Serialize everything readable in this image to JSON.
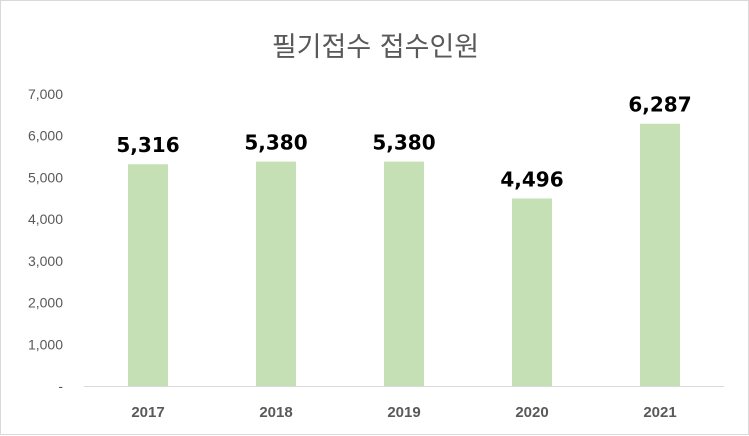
{
  "chart_data": {
    "type": "bar",
    "title": "필기접수 접수인원",
    "categories": [
      "2017",
      "2018",
      "2019",
      "2020",
      "2021"
    ],
    "values": [
      5316,
      5380,
      5380,
      4496,
      6287
    ],
    "data_labels": [
      "5,316",
      "5,380",
      "5,380",
      "4,496",
      "6,287"
    ],
    "ylim": [
      0,
      7000
    ],
    "yticks": [
      0,
      1000,
      2000,
      3000,
      4000,
      5000,
      6000,
      7000
    ],
    "ytick_labels": [
      "-",
      "1,000",
      "2,000",
      "3,000",
      "4,000",
      "5,000",
      "6,000",
      "7,000"
    ],
    "xlabel": "",
    "ylabel": "",
    "grid": false,
    "legend": "none",
    "colors": {
      "bar": "#c5e0b4",
      "axis": "#d9d9d9",
      "text": "#595959",
      "label": "#000000"
    }
  }
}
